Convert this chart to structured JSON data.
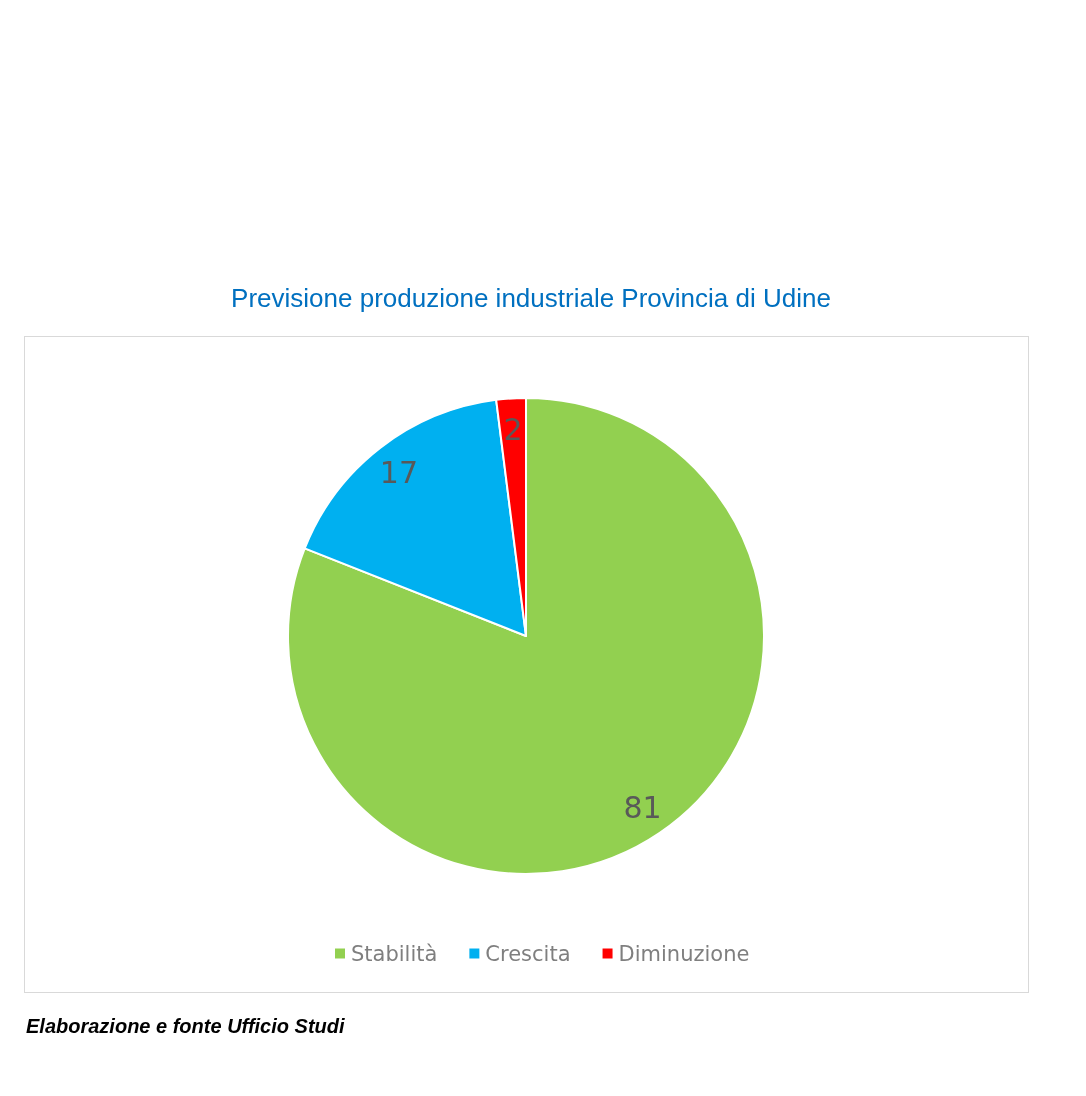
{
  "chart_data": {
    "type": "pie",
    "title": "Previsione produzione industriale Provincia di Udine",
    "categories": [
      "Stabilità",
      "Crescita",
      "Diminuzione"
    ],
    "values": [
      81,
      17,
      2
    ],
    "colors": [
      "#92d050",
      "#00b0f0",
      "#ff0000"
    ],
    "data_labels": true,
    "legend": "bottom",
    "annotations": [
      "Elaborazione e fonte Ufficio Studi"
    ]
  }
}
